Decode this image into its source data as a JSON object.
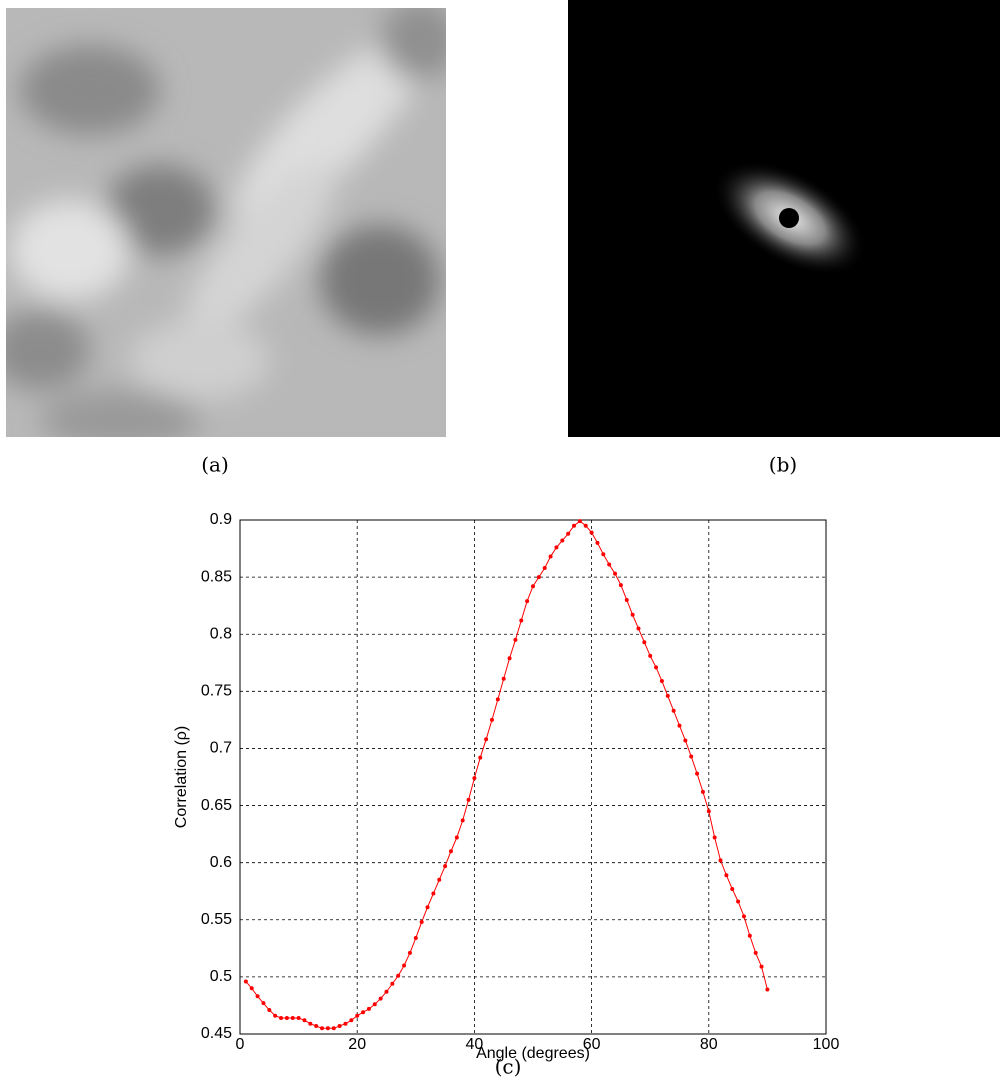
{
  "panels": {
    "a": "(a)",
    "b": "(b)",
    "c": "(c)"
  },
  "chart_data": {
    "type": "line",
    "xlabel": "Angle (degrees)",
    "ylabel": "Correlation (ρ)",
    "color": "#ff0000",
    "grid": true,
    "xlim": [
      0,
      100
    ],
    "xticks": [
      0,
      20,
      40,
      60,
      80,
      100
    ],
    "ylim": [
      0.45,
      0.9
    ],
    "yticks": [
      0.45,
      0.5,
      0.55,
      0.6,
      0.65,
      0.7,
      0.75,
      0.8,
      0.85,
      0.9
    ],
    "x": [
      1,
      2,
      3,
      4,
      5,
      6,
      7,
      8,
      9,
      10,
      11,
      12,
      13,
      14,
      15,
      16,
      17,
      18,
      19,
      20,
      21,
      22,
      23,
      24,
      25,
      26,
      27,
      28,
      29,
      30,
      31,
      32,
      33,
      34,
      35,
      36,
      37,
      38,
      39,
      40,
      41,
      42,
      43,
      44,
      45,
      46,
      47,
      48,
      49,
      50,
      51,
      52,
      53,
      54,
      55,
      56,
      57,
      58,
      59,
      60,
      61,
      62,
      63,
      64,
      65,
      66,
      67,
      68,
      69,
      70,
      71,
      72,
      73,
      74,
      75,
      76,
      77,
      78,
      79,
      80,
      81,
      82,
      83,
      84,
      85,
      86,
      87,
      88,
      89,
      90
    ],
    "values": [
      0.496,
      0.49,
      0.483,
      0.477,
      0.471,
      0.466,
      0.464,
      0.464,
      0.464,
      0.464,
      0.462,
      0.459,
      0.457,
      0.455,
      0.455,
      0.455,
      0.457,
      0.459,
      0.462,
      0.466,
      0.469,
      0.472,
      0.476,
      0.481,
      0.487,
      0.494,
      0.501,
      0.51,
      0.521,
      0.534,
      0.548,
      0.561,
      0.573,
      0.585,
      0.597,
      0.61,
      0.622,
      0.637,
      0.655,
      0.674,
      0.692,
      0.708,
      0.725,
      0.743,
      0.761,
      0.779,
      0.795,
      0.812,
      0.829,
      0.842,
      0.85,
      0.858,
      0.868,
      0.876,
      0.882,
      0.888,
      0.895,
      0.899,
      0.895,
      0.889,
      0.88,
      0.87,
      0.861,
      0.853,
      0.843,
      0.83,
      0.817,
      0.805,
      0.793,
      0.781,
      0.771,
      0.759,
      0.746,
      0.733,
      0.72,
      0.707,
      0.693,
      0.678,
      0.662,
      0.645,
      0.622,
      0.602,
      0.589,
      0.577,
      0.566,
      0.553,
      0.536,
      0.521,
      0.509,
      0.489
    ]
  }
}
